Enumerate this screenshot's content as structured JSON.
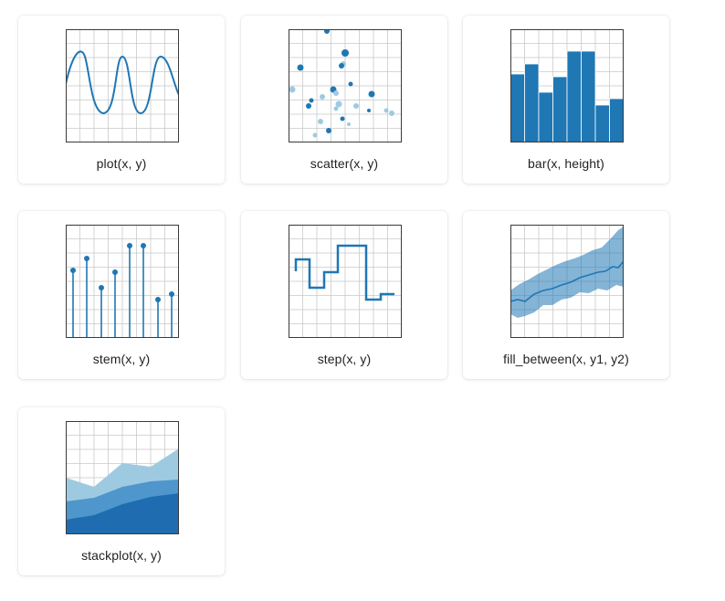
{
  "colors": {
    "primary": "#1f77b4",
    "light": "#9ecae1",
    "grid": "#c9c9c9",
    "axis": "#3a3a3a",
    "text": "#222222"
  },
  "gallery": {
    "cards": [
      {
        "id": "plot",
        "label": "plot(x, y)",
        "icon": "plot-thumbnail-icon"
      },
      {
        "id": "scatter",
        "label": "scatter(x, y)",
        "icon": "scatter-thumbnail-icon"
      },
      {
        "id": "bar",
        "label": "bar(x, height)",
        "icon": "bar-thumbnail-icon"
      },
      {
        "id": "stem",
        "label": "stem(x, y)",
        "icon": "stem-thumbnail-icon"
      },
      {
        "id": "step",
        "label": "step(x, y)",
        "icon": "step-thumbnail-icon"
      },
      {
        "id": "fill_between",
        "label": "fill_between(x, y1, y2)",
        "icon": "fill-between-thumbnail-icon"
      },
      {
        "id": "stackplot",
        "label": "stackplot(x, y)",
        "icon": "stackplot-thumbnail-icon"
      }
    ]
  }
}
